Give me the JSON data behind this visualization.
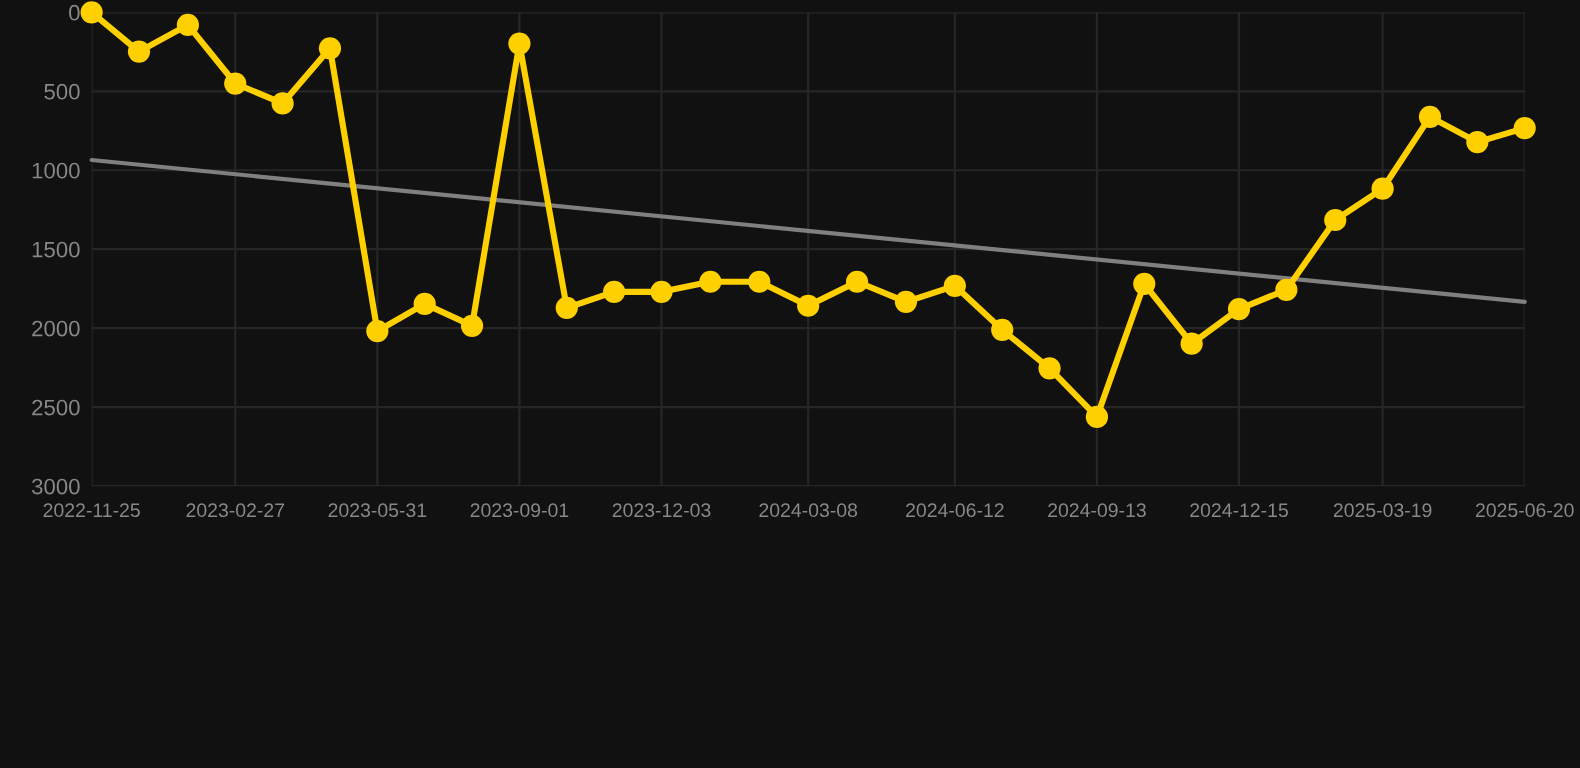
{
  "chart_data": {
    "type": "line",
    "x": [
      "2022-11-25",
      "2022-12-26",
      "2023-01-27",
      "2023-02-27",
      "2023-03-30",
      "2023-04-30",
      "2023-05-31",
      "2023-07-01",
      "2023-08-01",
      "2023-09-01",
      "2023-10-02",
      "2023-11-02",
      "2023-12-03",
      "2024-01-04",
      "2024-02-05",
      "2024-03-08",
      "2024-04-09",
      "2024-05-11",
      "2024-06-12",
      "2024-07-13",
      "2024-08-13",
      "2024-09-13",
      "2024-10-14",
      "2024-11-14",
      "2024-12-15",
      "2025-01-15",
      "2025-02-16",
      "2025-03-19",
      "2025-04-19",
      "2025-05-20",
      "2025-06-20"
    ],
    "series": [
      {
        "color": "#ffd000",
        "marker": "circle",
        "values": [
          0,
          249,
          80,
          451,
          577,
          228,
          2018,
          1846,
          1985,
          198,
          1871,
          1770,
          1770,
          1706,
          1706,
          1858,
          1706,
          1833,
          1732,
          2010,
          2254,
          2562,
          1719,
          2098,
          1879,
          1757,
          1315,
          1117,
          662,
          822,
          733
        ]
      },
      {
        "type": "line",
        "color": "#808080",
        "marker": "none",
        "x": [
          "2022-11-25",
          "2025-06-20"
        ],
        "values": [
          935,
          1833
        ]
      }
    ],
    "xlim": [
      "2022-11-25",
      "2025-06-20"
    ],
    "xticks": [
      "2022-11-25",
      "2023-02-27",
      "2023-05-31",
      "2023-09-01",
      "2023-12-03",
      "2024-03-08",
      "2024-06-12",
      "2024-09-13",
      "2024-12-15",
      "2025-03-19",
      "2025-06-20"
    ],
    "ylim": [
      3000,
      0
    ],
    "yticks": [
      0,
      500,
      1000,
      1500,
      2000,
      2500,
      3000
    ],
    "grid": true,
    "line_style": "solid"
  }
}
